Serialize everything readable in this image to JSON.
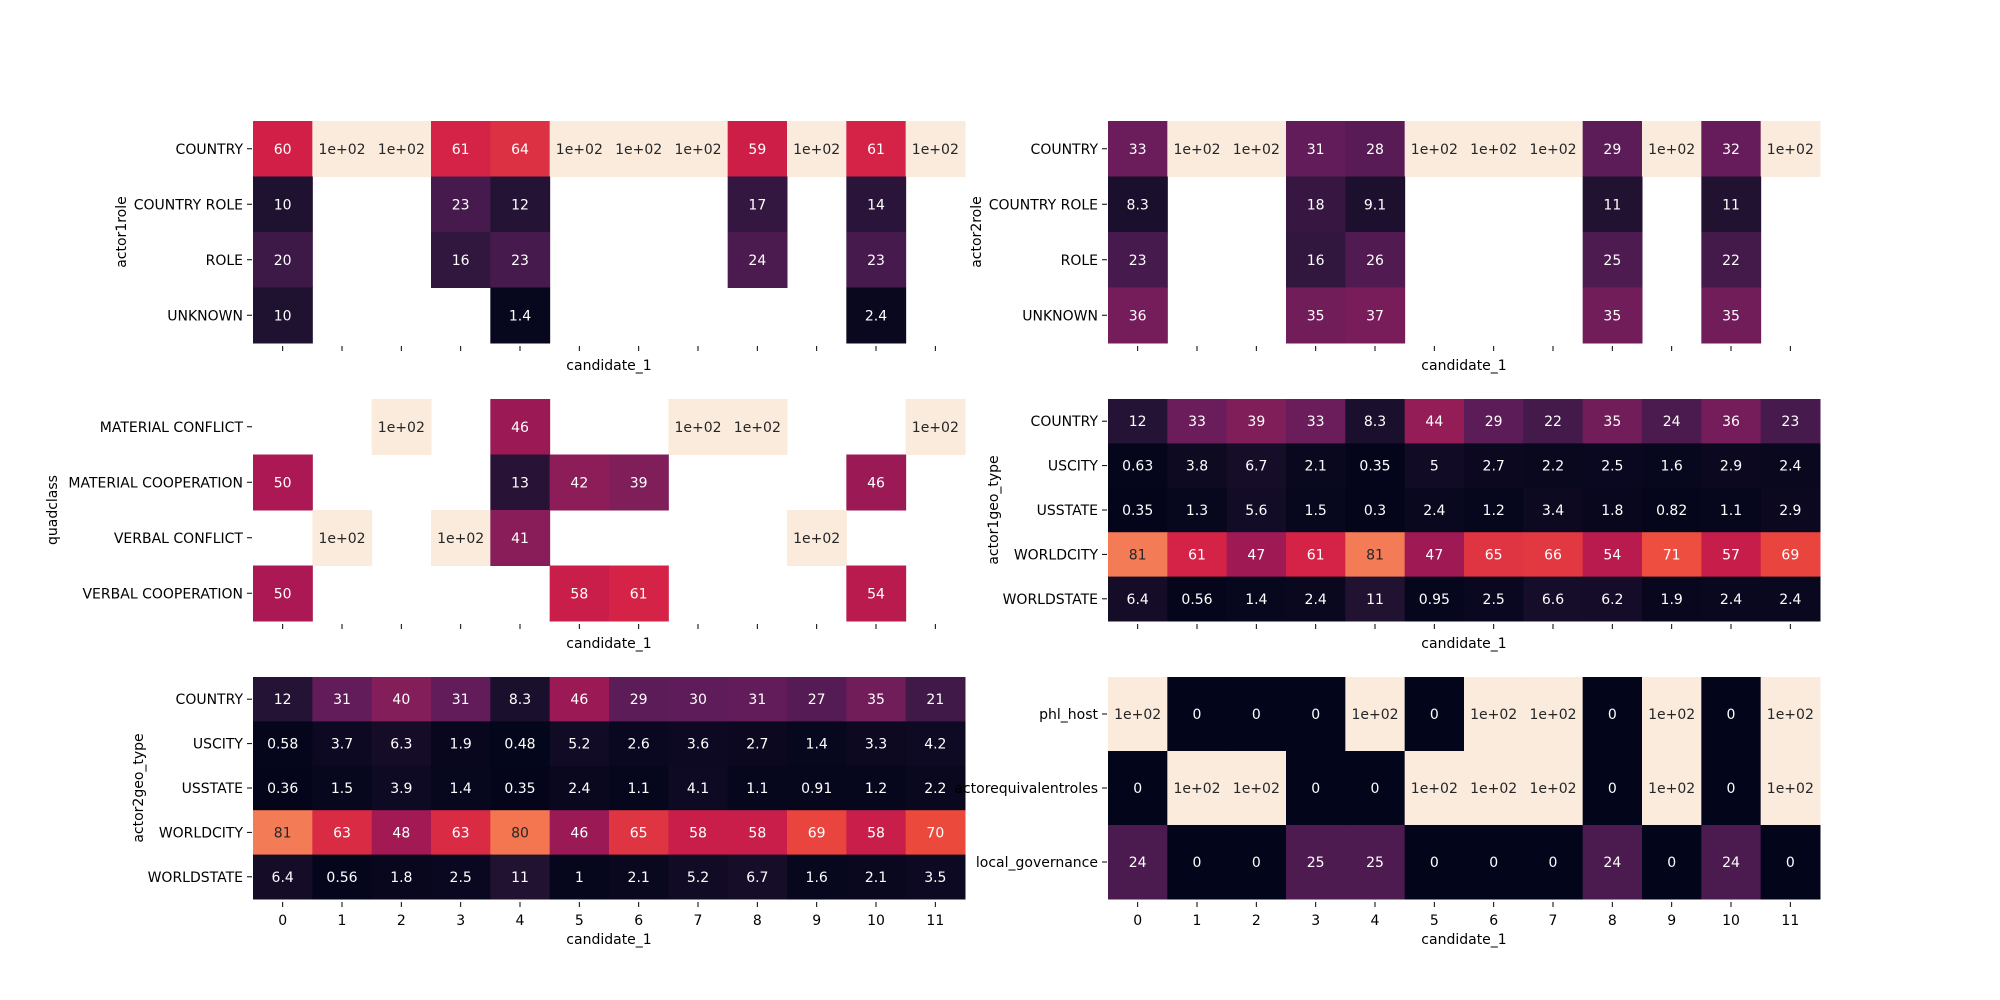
{
  "chart_data": [
    {
      "type": "heatmap",
      "title": "",
      "xlabel": "candidate_1",
      "ylabel": "actor1role",
      "show_xticklabels": false,
      "x": [
        "0",
        "1",
        "2",
        "3",
        "4",
        "5",
        "6",
        "7",
        "8",
        "9",
        "10",
        "11"
      ],
      "y": [
        "COUNTRY",
        "COUNTRY ROLE",
        "ROLE",
        "UNKNOWN"
      ],
      "values": [
        [
          60,
          100,
          100,
          61,
          64,
          100,
          100,
          100,
          59,
          100,
          61,
          100
        ],
        [
          10,
          null,
          null,
          23,
          12,
          null,
          null,
          null,
          17,
          null,
          14,
          null
        ],
        [
          20,
          null,
          null,
          16,
          23,
          null,
          null,
          null,
          24,
          null,
          23,
          null
        ],
        [
          10,
          null,
          null,
          null,
          1.4,
          null,
          null,
          null,
          null,
          null,
          2.4,
          null
        ]
      ],
      "annotations": [
        [
          "60",
          "1e+02",
          "1e+02",
          "61",
          "64",
          "1e+02",
          "1e+02",
          "1e+02",
          "59",
          "1e+02",
          "61",
          "1e+02"
        ],
        [
          "10",
          "",
          "",
          "23",
          "12",
          "",
          "",
          "",
          "17",
          "",
          "14",
          ""
        ],
        [
          "20",
          "",
          "",
          "16",
          "23",
          "",
          "",
          "",
          "24",
          "",
          "23",
          ""
        ],
        [
          "10",
          "",
          "",
          "",
          "1.4",
          "",
          "",
          "",
          "",
          "",
          "2.4",
          ""
        ]
      ],
      "colormap": "rocket",
      "vmin": 0,
      "vmax": 100
    },
    {
      "type": "heatmap",
      "title": "",
      "xlabel": "candidate_1",
      "ylabel": "actor2role",
      "show_xticklabels": false,
      "x": [
        "0",
        "1",
        "2",
        "3",
        "4",
        "5",
        "6",
        "7",
        "8",
        "9",
        "10",
        "11"
      ],
      "y": [
        "COUNTRY",
        "COUNTRY ROLE",
        "ROLE",
        "UNKNOWN"
      ],
      "values": [
        [
          33,
          100,
          100,
          31,
          28,
          100,
          100,
          100,
          29,
          100,
          32,
          100
        ],
        [
          8.3,
          null,
          null,
          18,
          9.1,
          null,
          null,
          null,
          11,
          null,
          11,
          null
        ],
        [
          23,
          null,
          null,
          16,
          26,
          null,
          null,
          null,
          25,
          null,
          22,
          null
        ],
        [
          36,
          null,
          null,
          35,
          37,
          null,
          null,
          null,
          35,
          null,
          35,
          null
        ]
      ],
      "annotations": [
        [
          "33",
          "1e+02",
          "1e+02",
          "31",
          "28",
          "1e+02",
          "1e+02",
          "1e+02",
          "29",
          "1e+02",
          "32",
          "1e+02"
        ],
        [
          "8.3",
          "",
          "",
          "18",
          "9.1",
          "",
          "",
          "",
          "11",
          "",
          "11",
          ""
        ],
        [
          "23",
          "",
          "",
          "16",
          "26",
          "",
          "",
          "",
          "25",
          "",
          "22",
          ""
        ],
        [
          "36",
          "",
          "",
          "35",
          "37",
          "",
          "",
          "",
          "35",
          "",
          "35",
          ""
        ]
      ],
      "colormap": "rocket",
      "vmin": 0,
      "vmax": 100
    },
    {
      "type": "heatmap",
      "title": "",
      "xlabel": "candidate_1",
      "ylabel": "quadclass",
      "show_xticklabels": false,
      "x": [
        "0",
        "1",
        "2",
        "3",
        "4",
        "5",
        "6",
        "7",
        "8",
        "9",
        "10",
        "11"
      ],
      "y": [
        "MATERIAL CONFLICT",
        "MATERIAL COOPERATION",
        "VERBAL CONFLICT",
        "VERBAL COOPERATION"
      ],
      "values": [
        [
          null,
          null,
          100,
          null,
          46,
          null,
          null,
          100,
          100,
          null,
          null,
          100
        ],
        [
          50,
          null,
          null,
          null,
          13,
          42,
          39,
          null,
          null,
          null,
          46,
          null
        ],
        [
          null,
          100,
          null,
          100,
          41,
          null,
          null,
          null,
          null,
          100,
          null,
          null
        ],
        [
          50,
          null,
          null,
          null,
          null,
          58,
          61,
          null,
          null,
          null,
          54,
          null
        ]
      ],
      "annotations": [
        [
          "",
          "",
          "1e+02",
          "",
          "46",
          "",
          "",
          "1e+02",
          "1e+02",
          "",
          "",
          "1e+02"
        ],
        [
          "50",
          "",
          "",
          "",
          "13",
          "42",
          "39",
          "",
          "",
          "",
          "46",
          ""
        ],
        [
          "",
          "1e+02",
          "",
          "1e+02",
          "41",
          "",
          "",
          "",
          "",
          "1e+02",
          "",
          ""
        ],
        [
          "50",
          "",
          "",
          "",
          "",
          "58",
          "61",
          "",
          "",
          "",
          "54",
          ""
        ]
      ],
      "colormap": "rocket",
      "vmin": 0,
      "vmax": 100
    },
    {
      "type": "heatmap",
      "title": "",
      "xlabel": "candidate_1",
      "ylabel": "actor1geo_type",
      "show_xticklabels": false,
      "x": [
        "0",
        "1",
        "2",
        "3",
        "4",
        "5",
        "6",
        "7",
        "8",
        "9",
        "10",
        "11"
      ],
      "y": [
        "COUNTRY",
        "USCITY",
        "USSTATE",
        "WORLDCITY",
        "WORLDSTATE"
      ],
      "values": [
        [
          12,
          33,
          39,
          33,
          8.3,
          44,
          29,
          22,
          35,
          24,
          36,
          23
        ],
        [
          0.63,
          3.8,
          6.7,
          2.1,
          0.35,
          5,
          2.7,
          2.2,
          2.5,
          1.6,
          2.9,
          2.4
        ],
        [
          0.35,
          1.3,
          5.6,
          1.5,
          0.3,
          2.4,
          1.2,
          3.4,
          1.8,
          0.82,
          1.1,
          2.9
        ],
        [
          81,
          61,
          47,
          61,
          81,
          47,
          65,
          66,
          54,
          71,
          57,
          69
        ],
        [
          6.4,
          0.56,
          1.4,
          2.4,
          11,
          0.95,
          2.5,
          6.6,
          6.2,
          1.9,
          2.4,
          2.4
        ]
      ],
      "annotations": [
        [
          "12",
          "33",
          "39",
          "33",
          "8.3",
          "44",
          "29",
          "22",
          "35",
          "24",
          "36",
          "23"
        ],
        [
          "0.63",
          "3.8",
          "6.7",
          "2.1",
          "0.35",
          "5",
          "2.7",
          "2.2",
          "2.5",
          "1.6",
          "2.9",
          "2.4"
        ],
        [
          "0.35",
          "1.3",
          "5.6",
          "1.5",
          "0.3",
          "2.4",
          "1.2",
          "3.4",
          "1.8",
          "0.82",
          "1.1",
          "2.9"
        ],
        [
          "81",
          "61",
          "47",
          "61",
          "81",
          "47",
          "65",
          "66",
          "54",
          "71",
          "57",
          "69"
        ],
        [
          "6.4",
          "0.56",
          "1.4",
          "2.4",
          "11",
          "0.95",
          "2.5",
          "6.6",
          "6.2",
          "1.9",
          "2.4",
          "2.4"
        ]
      ],
      "colormap": "rocket",
      "vmin": 0,
      "vmax": 100
    },
    {
      "type": "heatmap",
      "title": "",
      "xlabel": "candidate_1",
      "ylabel": "actor2geo_type",
      "show_xticklabels": true,
      "x": [
        "0",
        "1",
        "2",
        "3",
        "4",
        "5",
        "6",
        "7",
        "8",
        "9",
        "10",
        "11"
      ],
      "y": [
        "COUNTRY",
        "USCITY",
        "USSTATE",
        "WORLDCITY",
        "WORLDSTATE"
      ],
      "values": [
        [
          12,
          31,
          40,
          31,
          8.3,
          46,
          29,
          30,
          31,
          27,
          35,
          21
        ],
        [
          0.58,
          3.7,
          6.3,
          1.9,
          0.48,
          5.2,
          2.6,
          3.6,
          2.7,
          1.4,
          3.3,
          4.2
        ],
        [
          0.36,
          1.5,
          3.9,
          1.4,
          0.35,
          2.4,
          1.1,
          4.1,
          1.1,
          0.91,
          1.2,
          2.2
        ],
        [
          81,
          63,
          48,
          63,
          80,
          46,
          65,
          58,
          58,
          69,
          58,
          70
        ],
        [
          6.4,
          0.56,
          1.8,
          2.5,
          11,
          1,
          2.1,
          5.2,
          6.7,
          1.6,
          2.1,
          3.5
        ]
      ],
      "annotations": [
        [
          "12",
          "31",
          "40",
          "31",
          "8.3",
          "46",
          "29",
          "30",
          "31",
          "27",
          "35",
          "21"
        ],
        [
          "0.58",
          "3.7",
          "6.3",
          "1.9",
          "0.48",
          "5.2",
          "2.6",
          "3.6",
          "2.7",
          "1.4",
          "3.3",
          "4.2"
        ],
        [
          "0.36",
          "1.5",
          "3.9",
          "1.4",
          "0.35",
          "2.4",
          "1.1",
          "4.1",
          "1.1",
          "0.91",
          "1.2",
          "2.2"
        ],
        [
          "81",
          "63",
          "48",
          "63",
          "80",
          "46",
          "65",
          "58",
          "58",
          "69",
          "58",
          "70"
        ],
        [
          "6.4",
          "0.56",
          "1.8",
          "2.5",
          "11",
          "1",
          "2.1",
          "5.2",
          "6.7",
          "1.6",
          "2.1",
          "3.5"
        ]
      ],
      "colormap": "rocket",
      "vmin": 0,
      "vmax": 100
    },
    {
      "type": "heatmap",
      "title": "",
      "xlabel": "candidate_1",
      "ylabel": "",
      "show_xticklabels": true,
      "x": [
        "0",
        "1",
        "2",
        "3",
        "4",
        "5",
        "6",
        "7",
        "8",
        "9",
        "10",
        "11"
      ],
      "y": [
        "phl_host",
        "actorequivalentroles",
        "local_governance"
      ],
      "values": [
        [
          100,
          0,
          0,
          0,
          100,
          0,
          100,
          100,
          0,
          100,
          0,
          100
        ],
        [
          0,
          100,
          100,
          0,
          0,
          100,
          100,
          100,
          0,
          100,
          0,
          100
        ],
        [
          24,
          0,
          0,
          25,
          25,
          0,
          0,
          0,
          24,
          0,
          24,
          0
        ]
      ],
      "annotations": [
        [
          "1e+02",
          "0",
          "0",
          "0",
          "1e+02",
          "0",
          "1e+02",
          "1e+02",
          "0",
          "1e+02",
          "0",
          "1e+02"
        ],
        [
          "0",
          "1e+02",
          "1e+02",
          "0",
          "0",
          "1e+02",
          "1e+02",
          "1e+02",
          "0",
          "1e+02",
          "0",
          "1e+02"
        ],
        [
          "24",
          "0",
          "0",
          "25",
          "25",
          "0",
          "0",
          "0",
          "24",
          "0",
          "24",
          "0"
        ]
      ],
      "colormap": "rocket",
      "vmin": 0,
      "vmax": 100
    }
  ]
}
